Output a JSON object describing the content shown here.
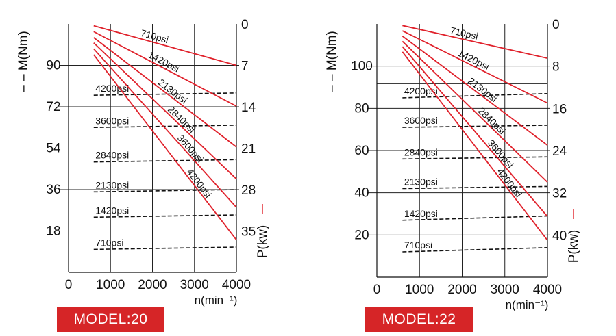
{
  "chart_data": [
    {
      "type": "line",
      "badge": "MODEL:20",
      "torque_axis_label": "– – M(Nm)",
      "power_axis_label": "P(kw)",
      "x_axis_label": "n(min⁻¹)",
      "x_ticks": [
        "0",
        "1000",
        "2000",
        "3000",
        "4000"
      ],
      "torque_ticks": [
        "18",
        "36",
        "54",
        "72",
        "90"
      ],
      "torque_tick_values": [
        18,
        36,
        54,
        72,
        90
      ],
      "power_ticks": [
        "0",
        "7",
        "14",
        "21",
        "28",
        "35"
      ],
      "power_tick_values": [
        0,
        7,
        14,
        21,
        28,
        35
      ],
      "xlim": [
        0,
        4000
      ],
      "torque_ylim": [
        0,
        108
      ],
      "power_ylim": [
        0,
        42
      ],
      "power_axis_inverted": true,
      "grid": true,
      "power_series_color": "#e0212b",
      "torque_series_color": "#111111",
      "power_series": [
        {
          "name": "710psi",
          "x": [
            600,
            4000
          ],
          "y": [
            0.3,
            7.0
          ]
        },
        {
          "name": "1420psi",
          "x": [
            600,
            4000
          ],
          "y": [
            1.3,
            13.9
          ]
        },
        {
          "name": "2130psi",
          "x": [
            600,
            4000
          ],
          "y": [
            2.3,
            20.8
          ]
        },
        {
          "name": "2840psi",
          "x": [
            600,
            4000
          ],
          "y": [
            3.2,
            26.2
          ]
        },
        {
          "name": "3600psi",
          "x": [
            600,
            4000
          ],
          "y": [
            4.2,
            31.0
          ]
        },
        {
          "name": "4200psi",
          "x": [
            600,
            4000
          ],
          "y": [
            5.2,
            36.5
          ]
        }
      ],
      "torque_series": [
        {
          "name": "4200psi",
          "x": [
            600,
            4000
          ],
          "y": [
            77,
            78
          ]
        },
        {
          "name": "3600psi",
          "x": [
            600,
            4000
          ],
          "y": [
            63,
            64
          ]
        },
        {
          "name": "2840psi",
          "x": [
            600,
            4000
          ],
          "y": [
            48,
            49
          ]
        },
        {
          "name": "2130psi",
          "x": [
            600,
            4000
          ],
          "y": [
            35,
            36
          ]
        },
        {
          "name": "1420psi",
          "x": [
            600,
            4000
          ],
          "y": [
            24,
            25
          ]
        },
        {
          "name": "710psi",
          "x": [
            600,
            4000
          ],
          "y": [
            10,
            11
          ]
        }
      ]
    },
    {
      "type": "line",
      "badge": "MODEL:22",
      "torque_axis_label": "– – M(Nm)",
      "power_axis_label": "P(kw)",
      "x_axis_label": "n(min⁻¹)",
      "x_ticks": [
        "0",
        "1000",
        "2000",
        "3000",
        "4000"
      ],
      "torque_ticks": [
        "20",
        "40",
        "60",
        "80",
        "100"
      ],
      "torque_tick_values": [
        20,
        40,
        60,
        80,
        100
      ],
      "power_ticks": [
        "0",
        "8",
        "16",
        "24",
        "32",
        "40"
      ],
      "power_tick_values": [
        0,
        8,
        16,
        24,
        32,
        40
      ],
      "xlim": [
        0,
        4000
      ],
      "torque_ylim": [
        0,
        120
      ],
      "power_ylim": [
        0,
        48
      ],
      "power_axis_inverted": true,
      "grid": true,
      "power_series_color": "#e0212b",
      "torque_series_color": "#111111",
      "power_series": [
        {
          "name": "710psi",
          "x": [
            600,
            4000
          ],
          "y": [
            0.3,
            6.5
          ]
        },
        {
          "name": "1420psi",
          "x": [
            600,
            4000
          ],
          "y": [
            1.3,
            15.0
          ]
        },
        {
          "name": "2130psi",
          "x": [
            600,
            4000
          ],
          "y": [
            2.3,
            23.0
          ]
        },
        {
          "name": "2840psi",
          "x": [
            600,
            4000
          ],
          "y": [
            3.3,
            30.0
          ]
        },
        {
          "name": "3600psi",
          "x": [
            600,
            4000
          ],
          "y": [
            4.3,
            36.5
          ]
        },
        {
          "name": "4200psi",
          "x": [
            600,
            4000
          ],
          "y": [
            5.3,
            41.0
          ]
        }
      ],
      "torque_series": [
        {
          "name": "4200psi",
          "x": [
            600,
            4000
          ],
          "y": [
            85,
            87
          ]
        },
        {
          "name": "3600psi",
          "x": [
            600,
            4000
          ],
          "y": [
            71,
            72
          ]
        },
        {
          "name": "2840psi",
          "x": [
            600,
            4000
          ],
          "y": [
            56,
            57
          ]
        },
        {
          "name": "2130psi",
          "x": [
            600,
            4000
          ],
          "y": [
            42,
            43
          ]
        },
        {
          "name": "1420psi",
          "x": [
            600,
            4000
          ],
          "y": [
            27,
            29
          ]
        },
        {
          "name": "710psi",
          "x": [
            600,
            4000
          ],
          "y": [
            12,
            14
          ]
        }
      ]
    }
  ]
}
